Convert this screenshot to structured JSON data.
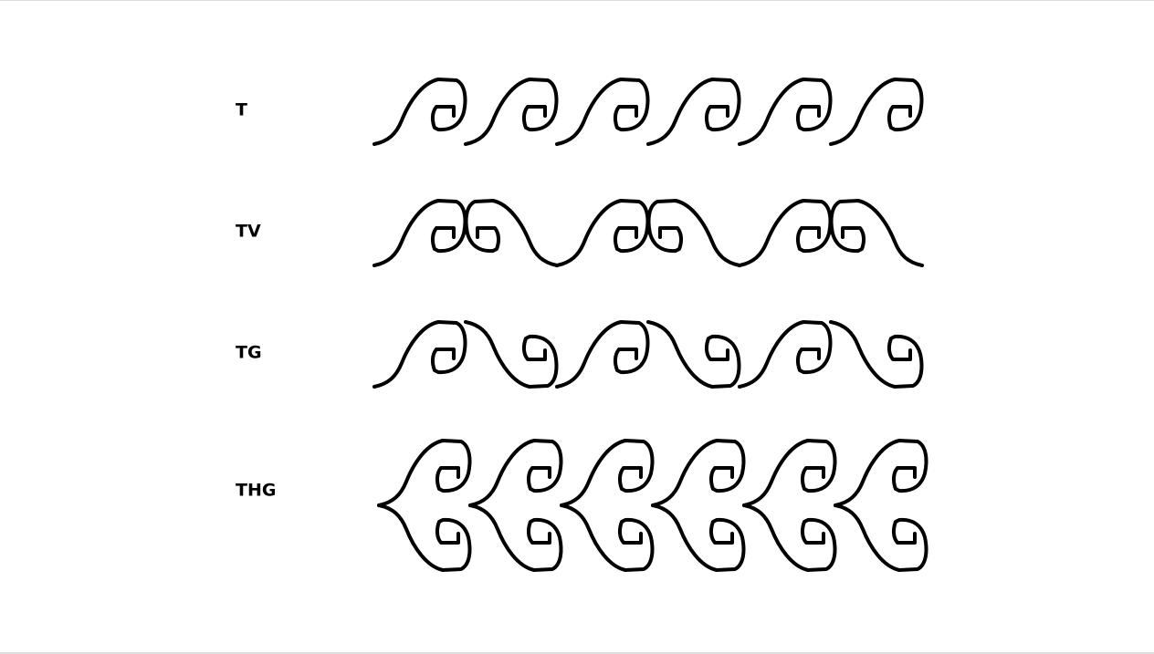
{
  "rows": [
    {
      "label": "T"
    },
    {
      "label": "TV"
    },
    {
      "label": "TG"
    },
    {
      "label": "THG"
    }
  ]
}
